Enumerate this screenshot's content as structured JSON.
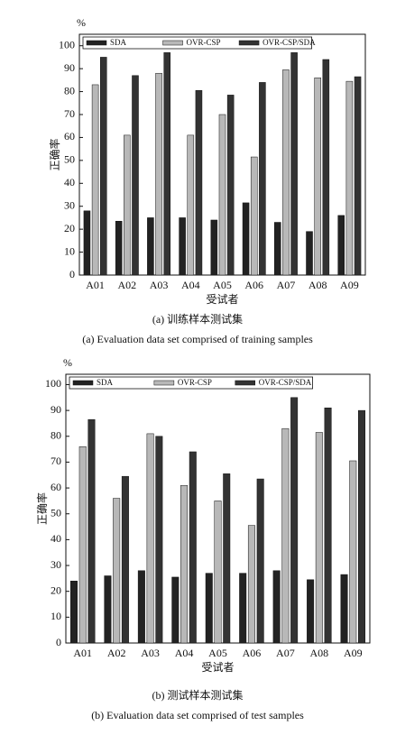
{
  "chart_data": [
    {
      "type": "bar",
      "y_unit": "%",
      "ylabel": "正确率",
      "xlabel": "受试者",
      "caption": "(a) 训练样本测试集",
      "caption_en": "(a) Evaluation data set comprised of training samples",
      "categories": [
        "A01",
        "A02",
        "A03",
        "A04",
        "A05",
        "A06",
        "A07",
        "A08",
        "A09"
      ],
      "series": [
        {
          "name": "SDA",
          "color": "#222222",
          "values": [
            28,
            23.5,
            25,
            25,
            24,
            31.5,
            23,
            19,
            26
          ]
        },
        {
          "name": "OVR-CSP",
          "color": "#b8b8b8",
          "values": [
            83,
            61,
            88,
            61,
            70,
            51.5,
            89.5,
            86,
            84.5
          ]
        },
        {
          "name": "OVR-CSP/SDA",
          "color": "#333333",
          "values": [
            95,
            87,
            97,
            80.5,
            78.5,
            84,
            97,
            94,
            86.5
          ]
        }
      ],
      "ylim": [
        0,
        105
      ],
      "yticks": [
        0,
        10,
        20,
        30,
        40,
        50,
        60,
        70,
        80,
        90,
        100
      ],
      "grid": false,
      "legend": "upper left"
    },
    {
      "type": "bar",
      "y_unit": "%",
      "ylabel": "正确率",
      "xlabel": "受试者",
      "caption": "(b) 测试样本测试集",
      "caption_en": "(b) Evaluation data set comprised of test samples",
      "categories": [
        "A01",
        "A02",
        "A03",
        "A04",
        "A05",
        "A06",
        "A07",
        "A08",
        "A09"
      ],
      "series": [
        {
          "name": "SDA",
          "color": "#222222",
          "values": [
            24,
            26,
            28,
            25.5,
            27,
            27,
            28,
            24.5,
            26.5
          ]
        },
        {
          "name": "OVR-CSP",
          "color": "#b8b8b8",
          "values": [
            76,
            56,
            81,
            61,
            55,
            45.5,
            83,
            81.5,
            70.5
          ]
        },
        {
          "name": "OVR-CSP/SDA",
          "color": "#333333",
          "values": [
            86.5,
            64.5,
            80,
            74,
            65.5,
            63.5,
            95,
            91,
            90
          ]
        }
      ],
      "ylim": [
        0,
        104
      ],
      "yticks": [
        0,
        10,
        20,
        30,
        40,
        50,
        60,
        70,
        80,
        90,
        100
      ],
      "grid": false,
      "legend": "upper left"
    }
  ]
}
